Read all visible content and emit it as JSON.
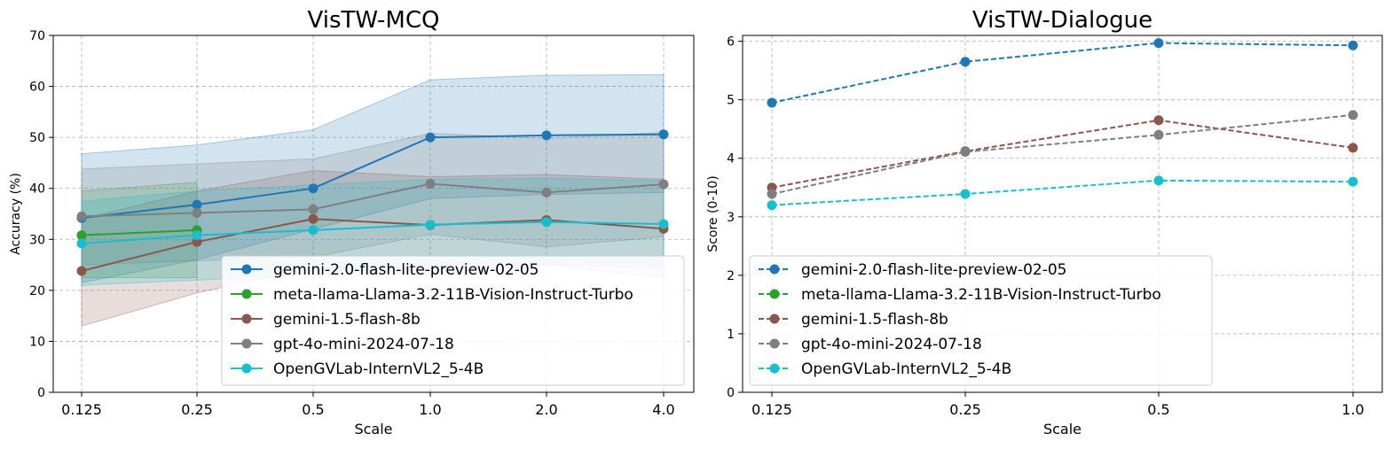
{
  "chart_data": [
    {
      "type": "line",
      "title": "VisTW-MCQ",
      "xlabel": "Scale",
      "ylabel": "Accuracy (%)",
      "ylim": [
        0,
        70
      ],
      "yticks": [
        0,
        10,
        20,
        30,
        40,
        50,
        60,
        70
      ],
      "categories": [
        "0.125",
        "0.25",
        "0.5",
        "1.0",
        "2.0",
        "4.0"
      ],
      "grid": true,
      "legend_position": "lower-right",
      "line_style": "solid",
      "series": [
        {
          "name": "gemini-2.0-flash-lite-preview-02-05",
          "color": "#1f77b4",
          "values": [
            34.2,
            36.8,
            40.0,
            50.0,
            50.4,
            50.6
          ],
          "band_low": [
            21.5,
            26.0,
            32.0,
            38.0,
            38.8,
            39.2
          ],
          "band_high": [
            46.8,
            48.5,
            51.5,
            61.3,
            62.2,
            62.3
          ]
        },
        {
          "name": "meta-llama-Llama-3.2-11B-Vision-Instruct-Turbo",
          "color": "#2ca02c",
          "values": [
            30.8,
            31.8,
            null,
            null,
            null,
            null
          ],
          "band_low": [
            22.5,
            22.5,
            null,
            null,
            null,
            null
          ],
          "band_high": [
            39.5,
            41.2,
            null,
            null,
            null,
            null
          ]
        },
        {
          "name": "gemini-1.5-flash-8b",
          "color": "#8c564b",
          "values": [
            23.8,
            29.5,
            34.0,
            32.8,
            33.8,
            32.1
          ],
          "band_low": [
            13.0,
            19.5,
            24.5,
            23.0,
            25.0,
            22.5
          ],
          "band_high": [
            34.0,
            39.5,
            43.5,
            42.3,
            42.7,
            41.8
          ]
        },
        {
          "name": "gpt-4o-mini-2024-07-18",
          "color": "#7f7f7f",
          "values": [
            34.5,
            35.2,
            35.9,
            40.9,
            39.2,
            40.8
          ],
          "band_low": [
            25.0,
            25.8,
            26.5,
            31.0,
            28.5,
            30.5
          ],
          "band_high": [
            43.8,
            44.8,
            45.8,
            50.8,
            49.8,
            51.0
          ]
        },
        {
          "name": "OpenGVLab-InternVL2_5-4B",
          "color": "#17becf",
          "values": [
            29.2,
            30.8,
            31.8,
            32.9,
            33.4,
            33.0
          ],
          "band_low": [
            21.0,
            22.0,
            23.0,
            24.0,
            25.0,
            24.5
          ],
          "band_high": [
            37.5,
            39.5,
            40.7,
            41.8,
            42.0,
            41.5
          ]
        }
      ]
    },
    {
      "type": "line",
      "title": "VisTW-Dialogue",
      "xlabel": "Scale",
      "ylabel": "Score (0-10)",
      "ylim": [
        0,
        6.1
      ],
      "yticks": [
        0,
        1,
        2,
        3,
        4,
        5,
        6
      ],
      "categories": [
        "0.125",
        "0.25",
        "0.5",
        "1.0"
      ],
      "grid": true,
      "legend_position": "lower-left",
      "line_style": "dashed",
      "series": [
        {
          "name": "gemini-2.0-flash-lite-preview-02-05",
          "color": "#1f77b4",
          "values": [
            4.95,
            5.65,
            5.97,
            5.93
          ]
        },
        {
          "name": "meta-llama-Llama-3.2-11B-Vision-Instruct-Turbo",
          "color": "#2ca02c",
          "values": [
            null,
            null,
            null,
            null
          ]
        },
        {
          "name": "gemini-1.5-flash-8b",
          "color": "#8c564b",
          "values": [
            3.5,
            4.12,
            4.65,
            4.18
          ]
        },
        {
          "name": "gpt-4o-mini-2024-07-18",
          "color": "#7f7f7f",
          "values": [
            3.39,
            4.11,
            4.4,
            4.74
          ]
        },
        {
          "name": "OpenGVLab-InternVL2_5-4B",
          "color": "#17becf",
          "values": [
            3.2,
            3.39,
            3.62,
            3.6
          ]
        }
      ]
    }
  ]
}
